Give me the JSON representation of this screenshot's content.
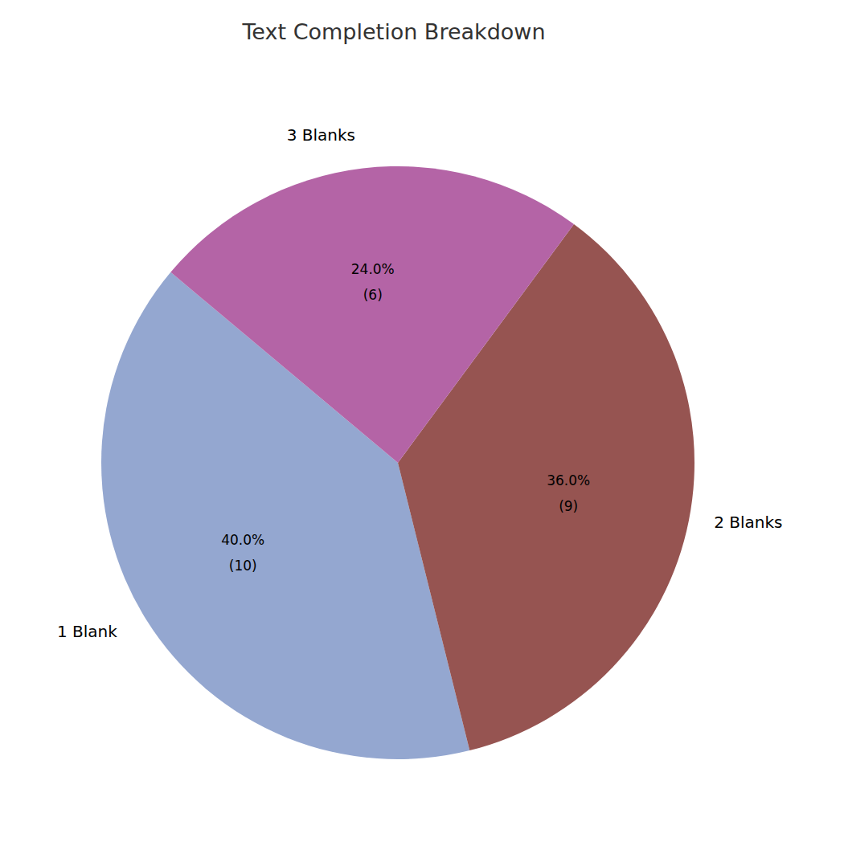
{
  "chart_data": {
    "type": "pie",
    "title": "Text Completion Breakdown",
    "categories": [
      "1 Blank",
      "2 Blanks",
      "3 Blanks"
    ],
    "values": [
      10,
      9,
      6
    ],
    "value_labels": [
      "40.0%\n(10)",
      "36.0%\n(9)",
      "24.0%\n(6)"
    ],
    "colors": [
      "#94a7d0",
      "#965451",
      "#b464a6"
    ],
    "data_labels": true
  }
}
